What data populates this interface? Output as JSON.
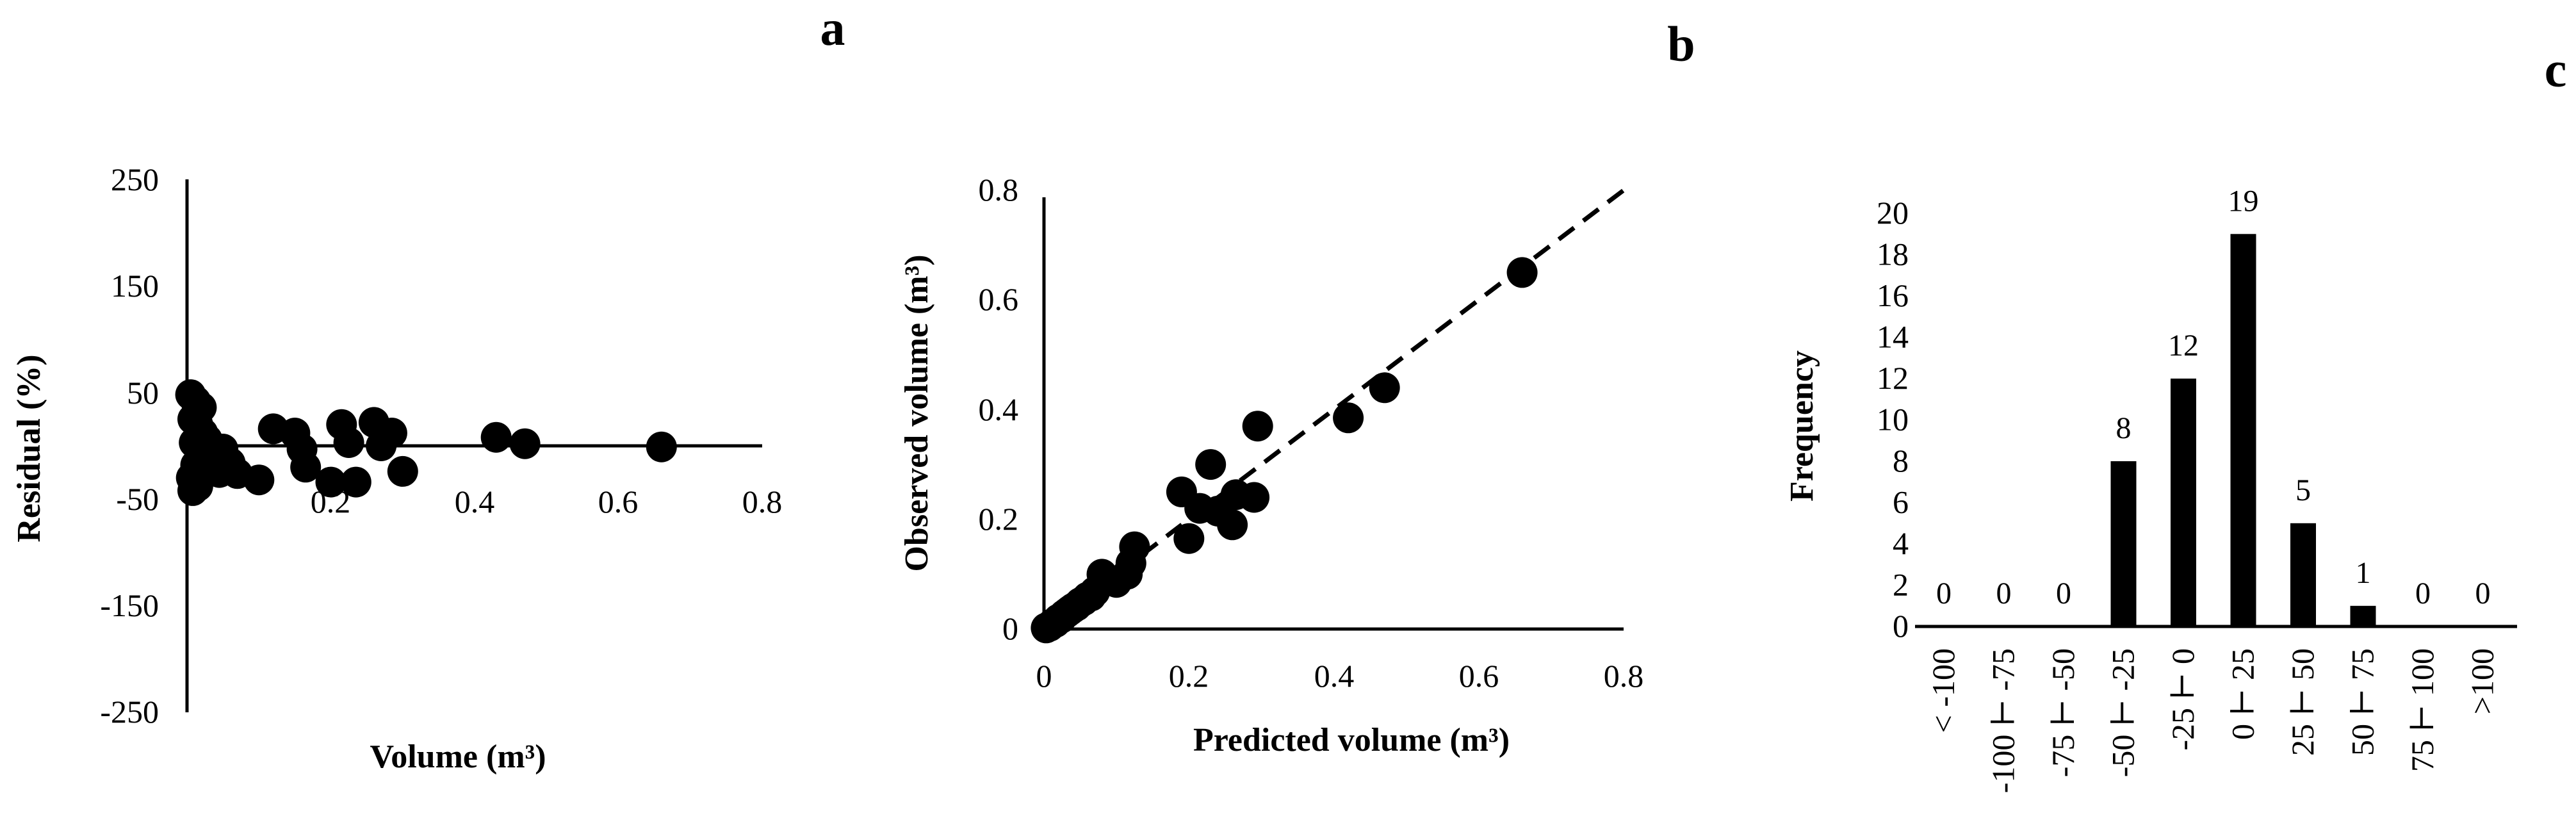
{
  "chart_data": [
    {
      "type": "scatter",
      "panel_label": "a",
      "xlabel": "Volume (m³)",
      "ylabel": "Residual (%)",
      "xlim": [
        0,
        0.8
      ],
      "ylim": [
        -250,
        250
      ],
      "x_ticks": [
        "0.2",
        "0.4",
        "0.6",
        "0.8"
      ],
      "y_ticks": [
        "250",
        "150",
        "50",
        "-50",
        "-150",
        "-250"
      ],
      "grid": false,
      "reference_line_y": 0,
      "points": [
        {
          "x": 0.005,
          "y": 48
        },
        {
          "x": 0.012,
          "y": 42
        },
        {
          "x": 0.02,
          "y": 36
        },
        {
          "x": 0.008,
          "y": 25
        },
        {
          "x": 0.015,
          "y": 20
        },
        {
          "x": 0.022,
          "y": 12
        },
        {
          "x": 0.028,
          "y": 6
        },
        {
          "x": 0.01,
          "y": 3
        },
        {
          "x": 0.035,
          "y": 0
        },
        {
          "x": 0.018,
          "y": -4
        },
        {
          "x": 0.03,
          "y": -8
        },
        {
          "x": 0.04,
          "y": -14
        },
        {
          "x": 0.012,
          "y": -18
        },
        {
          "x": 0.024,
          "y": -22
        },
        {
          "x": 0.045,
          "y": -25
        },
        {
          "x": 0.006,
          "y": -30
        },
        {
          "x": 0.05,
          "y": -3
        },
        {
          "x": 0.06,
          "y": -16
        },
        {
          "x": 0.015,
          "y": -38
        },
        {
          "x": 0.008,
          "y": -42
        },
        {
          "x": 0.07,
          "y": -26
        },
        {
          "x": 0.1,
          "y": -32
        },
        {
          "x": 0.12,
          "y": 16
        },
        {
          "x": 0.15,
          "y": 12
        },
        {
          "x": 0.16,
          "y": -3
        },
        {
          "x": 0.165,
          "y": -20
        },
        {
          "x": 0.2,
          "y": -34
        },
        {
          "x": 0.215,
          "y": 20
        },
        {
          "x": 0.225,
          "y": 3
        },
        {
          "x": 0.235,
          "y": -34
        },
        {
          "x": 0.26,
          "y": 22
        },
        {
          "x": 0.27,
          "y": 0
        },
        {
          "x": 0.285,
          "y": 12
        },
        {
          "x": 0.3,
          "y": -24
        },
        {
          "x": 0.43,
          "y": 8
        },
        {
          "x": 0.47,
          "y": 2
        },
        {
          "x": 0.66,
          "y": -1
        }
      ]
    },
    {
      "type": "scatter",
      "panel_label": "b",
      "xlabel": "Predicted volume (m³)",
      "ylabel": "Observed volume (m³)",
      "xlim": [
        0,
        0.8
      ],
      "ylim": [
        0,
        0.8
      ],
      "x_ticks": [
        "0",
        "0.2",
        "0.4",
        "0.6",
        "0.8"
      ],
      "y_ticks": [
        "0",
        "0.2",
        "0.4",
        "0.6",
        "0.8"
      ],
      "grid": false,
      "reference_line": "1:1 dashed",
      "points": [
        {
          "x": 0.003,
          "y": 0.002
        },
        {
          "x": 0.008,
          "y": 0.005
        },
        {
          "x": 0.012,
          "y": 0.01
        },
        {
          "x": 0.016,
          "y": 0.012
        },
        {
          "x": 0.02,
          "y": 0.018
        },
        {
          "x": 0.024,
          "y": 0.02
        },
        {
          "x": 0.028,
          "y": 0.026
        },
        {
          "x": 0.032,
          "y": 0.03
        },
        {
          "x": 0.036,
          "y": 0.034
        },
        {
          "x": 0.04,
          "y": 0.038
        },
        {
          "x": 0.045,
          "y": 0.042
        },
        {
          "x": 0.05,
          "y": 0.048
        },
        {
          "x": 0.055,
          "y": 0.052
        },
        {
          "x": 0.06,
          "y": 0.058
        },
        {
          "x": 0.065,
          "y": 0.06
        },
        {
          "x": 0.07,
          "y": 0.068
        },
        {
          "x": 0.08,
          "y": 0.1
        },
        {
          "x": 0.1,
          "y": 0.085
        },
        {
          "x": 0.115,
          "y": 0.1
        },
        {
          "x": 0.12,
          "y": 0.12
        },
        {
          "x": 0.125,
          "y": 0.15
        },
        {
          "x": 0.19,
          "y": 0.25
        },
        {
          "x": 0.2,
          "y": 0.165
        },
        {
          "x": 0.215,
          "y": 0.22
        },
        {
          "x": 0.23,
          "y": 0.3
        },
        {
          "x": 0.24,
          "y": 0.215
        },
        {
          "x": 0.26,
          "y": 0.19
        },
        {
          "x": 0.265,
          "y": 0.245
        },
        {
          "x": 0.29,
          "y": 0.24
        },
        {
          "x": 0.295,
          "y": 0.37
        },
        {
          "x": 0.42,
          "y": 0.385
        },
        {
          "x": 0.47,
          "y": 0.44
        },
        {
          "x": 0.66,
          "y": 0.65
        }
      ]
    },
    {
      "type": "bar",
      "panel_label": "c",
      "ylabel": "Frequency",
      "ylim": [
        0,
        20
      ],
      "y_ticks": [
        "0",
        "2",
        "4",
        "6",
        "8",
        "10",
        "12",
        "14",
        "16",
        "18",
        "20"
      ],
      "categories": [
        "< -100",
        "-100 ⊢ -75",
        "-75 ⊢ -50",
        "-50 ⊢ -25",
        "-25 ⊢ 0",
        "0 ⊢ 25",
        "25 ⊢ 50",
        "50 ⊢ 75",
        "75 ⊢ 100",
        ">100"
      ],
      "values": [
        0,
        0,
        0,
        8,
        12,
        19,
        5,
        1,
        0,
        0
      ],
      "data_labels": [
        "0",
        "0",
        "0",
        "8",
        "12",
        "19",
        "5",
        "1",
        "0",
        "0"
      ],
      "colors": {
        "bar": "#000000"
      }
    }
  ]
}
